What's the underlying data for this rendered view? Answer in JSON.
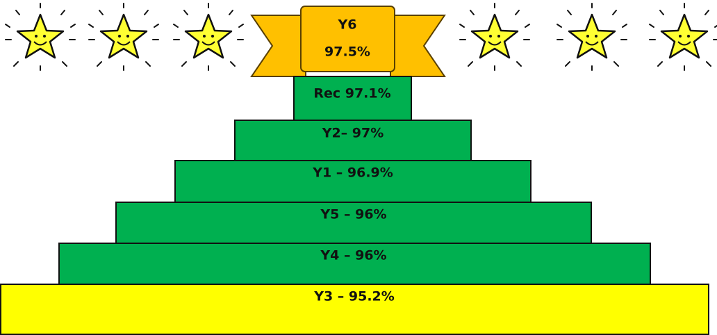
{
  "banner": {
    "lines": [
      "Y6",
      "97.5%"
    ]
  },
  "tiers": [
    {
      "label": "Rec 97.1%"
    },
    {
      "label": "Y2– 97%"
    },
    {
      "label": "Y1 – 96.9%"
    },
    {
      "label": "Y5 – 96%"
    },
    {
      "label": "Y4 – 96%"
    },
    {
      "label": "Y3 – 95.2%"
    }
  ]
}
